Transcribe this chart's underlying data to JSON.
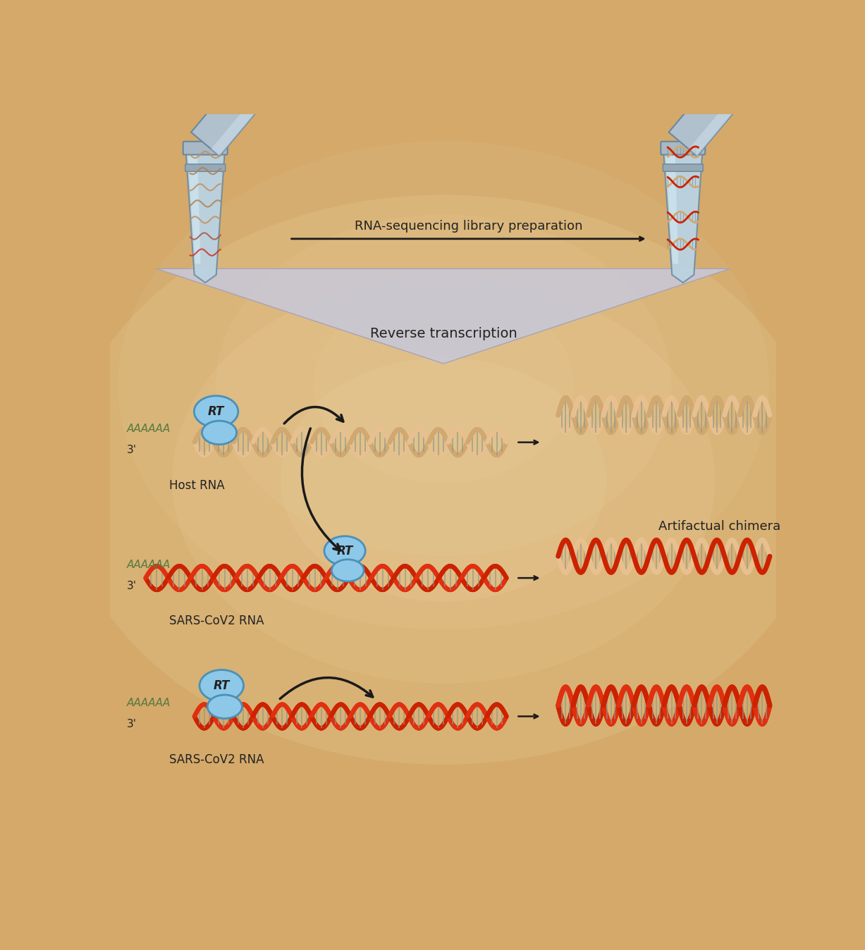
{
  "bg_color": "#D4A96A",
  "bg_light": "#E8C98A",
  "tube_body": "#B8D4E0",
  "tube_outline": "#6888A0",
  "tube_cap": "#A8B8C8",
  "tube_ring": "#9AAAB8",
  "liquid_color": "#90C0D8",
  "rt_fill": "#8EC8E8",
  "rt_outline": "#4A90B8",
  "host_c1": "#E8C090",
  "host_c2": "#D0A870",
  "host_dark": "#B89060",
  "sars_c1": "#CC2200",
  "sars_c2": "#E03010",
  "sars_dark": "#991800",
  "bar_color": "#8A9A8A",
  "black": "#1A1A1A",
  "text_dark": "#222222",
  "tri_color": "#C8C8D8",
  "tri_edge": "#A0A0B8",
  "arrow_rna_seq": "RNA-sequencing library preparation",
  "label_rev_trans": "Reverse transcription",
  "label_host_rna": "Host RNA",
  "label_sars1": "SARS-CoV2 RNA",
  "label_sars2": "SARS-CoV2 RNA",
  "label_art_chimera": "Artifactual chimera",
  "label_rt": "RT",
  "poly_a": "AAAAAA",
  "three_prime": "3'",
  "green_poly": "#5A7A40"
}
